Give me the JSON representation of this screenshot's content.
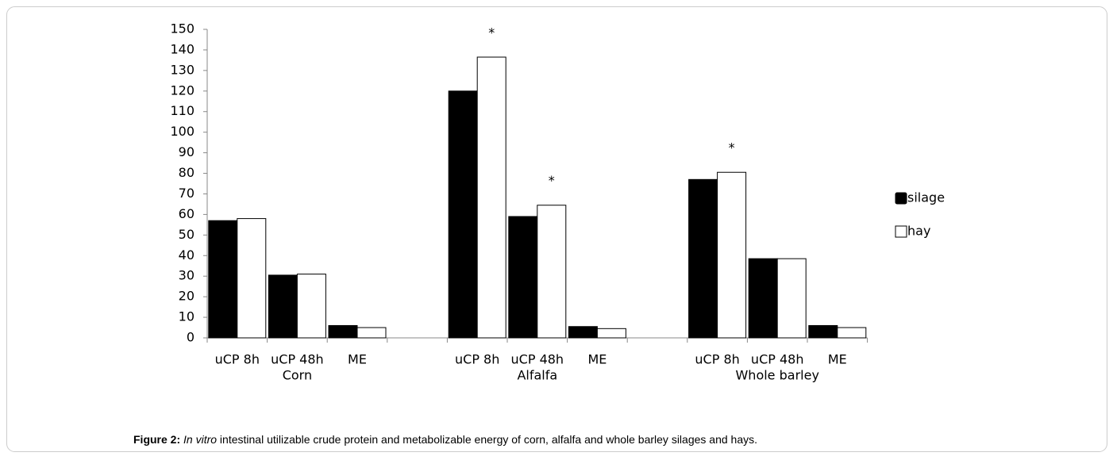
{
  "chart_data": {
    "type": "bar",
    "categories": [
      "uCP 8h",
      "uCP 48h",
      "ME",
      null,
      "uCP 8h",
      "uCP 48h",
      "ME",
      null,
      "uCP 8h",
      "uCP 48h",
      "ME"
    ],
    "groups": [
      "Corn",
      "Alfalfa",
      "Whole barley"
    ],
    "series": [
      {
        "name": "silage",
        "color": "#000000",
        "values": [
          57,
          30.5,
          6,
          null,
          120,
          59,
          5.5,
          null,
          77,
          38.5,
          6
        ]
      },
      {
        "name": "hay",
        "color": "#ffffff",
        "values": [
          58,
          31,
          5,
          null,
          136.5,
          64.5,
          4.5,
          null,
          80.5,
          38.5,
          5
        ]
      }
    ],
    "annotations": [
      null,
      null,
      null,
      null,
      "*",
      "*",
      null,
      null,
      "*",
      null,
      null
    ],
    "ylim": [
      0,
      150
    ],
    "yticks": [
      0,
      10,
      20,
      30,
      40,
      50,
      60,
      70,
      80,
      90,
      100,
      110,
      120,
      130,
      140,
      150
    ],
    "grid": false,
    "legend": "right"
  },
  "caption": {
    "label": "Figure 2:",
    "italic": "In vitro",
    "text": " intestinal utilizable crude protein and metabolizable energy of corn, alfalfa and whole barley silages and hays."
  }
}
